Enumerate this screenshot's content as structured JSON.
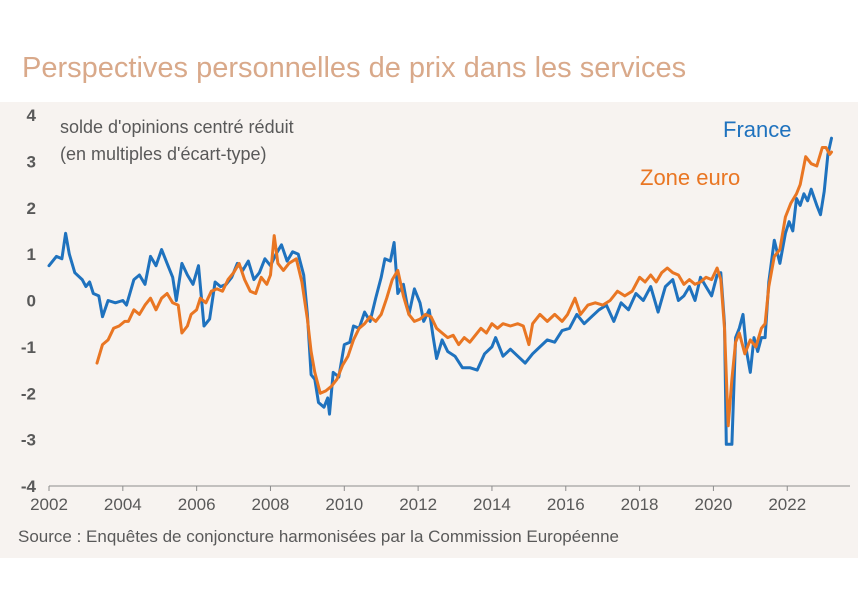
{
  "title": "Perspectives personnelles de prix dans les services",
  "source": "Source : Enquêtes de conjoncture harmonisées par la Commission Européenne",
  "colors": {
    "france": "#1f72be",
    "euro": "#e97623",
    "title": "#d9a98a",
    "axis": "#595959",
    "panel": "#f7f3f0"
  },
  "chart_data": {
    "type": "line",
    "title": "Perspectives personnelles de prix dans les services",
    "ylabel_lines": [
      "solde d'opinions centré réduit",
      "(en multiples d'écart-type)"
    ],
    "xlabel": "",
    "xlim": [
      2002,
      2023.7
    ],
    "ylim": [
      -4,
      4
    ],
    "x_ticks": [
      2002,
      2004,
      2006,
      2008,
      2010,
      2012,
      2014,
      2016,
      2018,
      2020,
      2022
    ],
    "y_ticks": [
      4,
      3,
      2,
      1,
      0,
      -1,
      -2,
      -3,
      -4
    ],
    "series": [
      {
        "name": "France",
        "color": "#1f72be",
        "points": [
          [
            2002.0,
            0.75
          ],
          [
            2002.2,
            0.95
          ],
          [
            2002.35,
            0.9
          ],
          [
            2002.45,
            1.45
          ],
          [
            2002.55,
            1.0
          ],
          [
            2002.7,
            0.6
          ],
          [
            2002.9,
            0.45
          ],
          [
            2003.0,
            0.3
          ],
          [
            2003.1,
            0.4
          ],
          [
            2003.2,
            0.15
          ],
          [
            2003.35,
            0.1
          ],
          [
            2003.45,
            -0.35
          ],
          [
            2003.6,
            0.0
          ],
          [
            2003.8,
            -0.05
          ],
          [
            2004.0,
            0.0
          ],
          [
            2004.1,
            -0.1
          ],
          [
            2004.3,
            0.45
          ],
          [
            2004.45,
            0.55
          ],
          [
            2004.6,
            0.35
          ],
          [
            2004.75,
            0.95
          ],
          [
            2004.9,
            0.75
          ],
          [
            2005.05,
            1.1
          ],
          [
            2005.2,
            0.8
          ],
          [
            2005.35,
            0.5
          ],
          [
            2005.45,
            0.0
          ],
          [
            2005.6,
            0.8
          ],
          [
            2005.75,
            0.55
          ],
          [
            2005.9,
            0.35
          ],
          [
            2006.05,
            0.75
          ],
          [
            2006.2,
            -0.55
          ],
          [
            2006.35,
            -0.4
          ],
          [
            2006.5,
            0.4
          ],
          [
            2006.65,
            0.3
          ],
          [
            2006.8,
            0.35
          ],
          [
            2006.95,
            0.5
          ],
          [
            2007.1,
            0.8
          ],
          [
            2007.25,
            0.65
          ],
          [
            2007.4,
            0.85
          ],
          [
            2007.55,
            0.45
          ],
          [
            2007.7,
            0.6
          ],
          [
            2007.85,
            0.9
          ],
          [
            2008.0,
            0.75
          ],
          [
            2008.15,
            1.0
          ],
          [
            2008.3,
            1.2
          ],
          [
            2008.45,
            0.85
          ],
          [
            2008.6,
            1.05
          ],
          [
            2008.75,
            1.0
          ],
          [
            2008.9,
            0.55
          ],
          [
            2009.0,
            -0.3
          ],
          [
            2009.1,
            -1.6
          ],
          [
            2009.2,
            -1.7
          ],
          [
            2009.3,
            -2.2
          ],
          [
            2009.45,
            -2.3
          ],
          [
            2009.55,
            -2.1
          ],
          [
            2009.6,
            -2.45
          ],
          [
            2009.7,
            -1.55
          ],
          [
            2009.85,
            -1.65
          ],
          [
            2010.0,
            -0.95
          ],
          [
            2010.15,
            -0.9
          ],
          [
            2010.25,
            -0.55
          ],
          [
            2010.4,
            -0.6
          ],
          [
            2010.55,
            -0.25
          ],
          [
            2010.7,
            -0.45
          ],
          [
            2010.85,
            0.05
          ],
          [
            2011.0,
            0.5
          ],
          [
            2011.1,
            0.9
          ],
          [
            2011.25,
            0.85
          ],
          [
            2011.35,
            1.25
          ],
          [
            2011.45,
            0.15
          ],
          [
            2011.6,
            0.35
          ],
          [
            2011.75,
            -0.3
          ],
          [
            2011.9,
            0.25
          ],
          [
            2012.05,
            -0.05
          ],
          [
            2012.15,
            -0.45
          ],
          [
            2012.3,
            -0.2
          ],
          [
            2012.4,
            -0.75
          ],
          [
            2012.5,
            -1.25
          ],
          [
            2012.65,
            -0.85
          ],
          [
            2012.8,
            -1.1
          ],
          [
            2013.0,
            -1.2
          ],
          [
            2013.2,
            -1.45
          ],
          [
            2013.4,
            -1.45
          ],
          [
            2013.6,
            -1.5
          ],
          [
            2013.8,
            -1.15
          ],
          [
            2014.0,
            -1.0
          ],
          [
            2014.1,
            -0.8
          ],
          [
            2014.3,
            -1.2
          ],
          [
            2014.5,
            -1.05
          ],
          [
            2014.7,
            -1.2
          ],
          [
            2014.9,
            -1.35
          ],
          [
            2015.1,
            -1.15
          ],
          [
            2015.3,
            -1.0
          ],
          [
            2015.5,
            -0.85
          ],
          [
            2015.7,
            -0.9
          ],
          [
            2015.9,
            -0.65
          ],
          [
            2016.1,
            -0.6
          ],
          [
            2016.3,
            -0.3
          ],
          [
            2016.5,
            -0.5
          ],
          [
            2016.7,
            -0.35
          ],
          [
            2016.9,
            -0.2
          ],
          [
            2017.1,
            -0.1
          ],
          [
            2017.3,
            -0.45
          ],
          [
            2017.5,
            -0.05
          ],
          [
            2017.7,
            -0.2
          ],
          [
            2017.9,
            0.15
          ],
          [
            2018.1,
            0.0
          ],
          [
            2018.3,
            0.3
          ],
          [
            2018.5,
            -0.25
          ],
          [
            2018.7,
            0.3
          ],
          [
            2018.9,
            0.45
          ],
          [
            2019.05,
            0.0
          ],
          [
            2019.2,
            0.1
          ],
          [
            2019.35,
            0.3
          ],
          [
            2019.5,
            0.0
          ],
          [
            2019.65,
            0.5
          ],
          [
            2019.8,
            0.3
          ],
          [
            2019.95,
            0.1
          ],
          [
            2020.1,
            0.55
          ],
          [
            2020.2,
            0.6
          ],
          [
            2020.3,
            -0.5
          ],
          [
            2020.35,
            -3.1
          ],
          [
            2020.5,
            -3.1
          ],
          [
            2020.6,
            -0.8
          ],
          [
            2020.7,
            -0.6
          ],
          [
            2020.8,
            -0.3
          ],
          [
            2020.9,
            -1.1
          ],
          [
            2021.0,
            -1.55
          ],
          [
            2021.1,
            -0.8
          ],
          [
            2021.2,
            -1.1
          ],
          [
            2021.3,
            -0.8
          ],
          [
            2021.4,
            -0.8
          ],
          [
            2021.5,
            0.4
          ],
          [
            2021.65,
            1.3
          ],
          [
            2021.8,
            0.8
          ],
          [
            2021.95,
            1.45
          ],
          [
            2022.05,
            1.7
          ],
          [
            2022.15,
            1.5
          ],
          [
            2022.25,
            2.2
          ],
          [
            2022.35,
            2.05
          ],
          [
            2022.45,
            2.3
          ],
          [
            2022.55,
            2.15
          ],
          [
            2022.65,
            2.4
          ],
          [
            2022.8,
            2.05
          ],
          [
            2022.9,
            1.85
          ],
          [
            2023.0,
            2.35
          ],
          [
            2023.1,
            3.15
          ],
          [
            2023.2,
            3.5
          ]
        ]
      },
      {
        "name": "Zone euro",
        "color": "#e97623",
        "points": [
          [
            2003.3,
            -1.35
          ],
          [
            2003.45,
            -0.95
          ],
          [
            2003.6,
            -0.85
          ],
          [
            2003.75,
            -0.6
          ],
          [
            2003.9,
            -0.55
          ],
          [
            2004.05,
            -0.45
          ],
          [
            2004.15,
            -0.45
          ],
          [
            2004.3,
            -0.2
          ],
          [
            2004.45,
            -0.3
          ],
          [
            2004.6,
            -0.1
          ],
          [
            2004.75,
            0.05
          ],
          [
            2004.9,
            -0.2
          ],
          [
            2005.05,
            0.05
          ],
          [
            2005.2,
            0.15
          ],
          [
            2005.35,
            -0.05
          ],
          [
            2005.5,
            -0.1
          ],
          [
            2005.6,
            -0.7
          ],
          [
            2005.75,
            -0.55
          ],
          [
            2005.85,
            -0.3
          ],
          [
            2006.0,
            -0.2
          ],
          [
            2006.1,
            0.05
          ],
          [
            2006.25,
            -0.05
          ],
          [
            2006.4,
            0.2
          ],
          [
            2006.55,
            0.25
          ],
          [
            2006.7,
            0.2
          ],
          [
            2006.85,
            0.45
          ],
          [
            2007.0,
            0.6
          ],
          [
            2007.15,
            0.8
          ],
          [
            2007.3,
            0.45
          ],
          [
            2007.45,
            0.2
          ],
          [
            2007.6,
            0.15
          ],
          [
            2007.75,
            0.5
          ],
          [
            2007.9,
            0.35
          ],
          [
            2008.0,
            0.55
          ],
          [
            2008.1,
            1.4
          ],
          [
            2008.2,
            0.8
          ],
          [
            2008.35,
            0.65
          ],
          [
            2008.5,
            0.8
          ],
          [
            2008.7,
            0.9
          ],
          [
            2008.85,
            0.4
          ],
          [
            2009.0,
            -0.4
          ],
          [
            2009.1,
            -1.1
          ],
          [
            2009.2,
            -1.55
          ],
          [
            2009.35,
            -2.0
          ],
          [
            2009.5,
            -1.95
          ],
          [
            2009.65,
            -1.85
          ],
          [
            2009.8,
            -1.7
          ],
          [
            2009.95,
            -1.4
          ],
          [
            2010.1,
            -1.2
          ],
          [
            2010.25,
            -0.85
          ],
          [
            2010.4,
            -0.6
          ],
          [
            2010.55,
            -0.5
          ],
          [
            2010.7,
            -0.35
          ],
          [
            2010.85,
            -0.45
          ],
          [
            2011.0,
            -0.3
          ],
          [
            2011.15,
            0.05
          ],
          [
            2011.3,
            0.45
          ],
          [
            2011.45,
            0.65
          ],
          [
            2011.6,
            0.1
          ],
          [
            2011.75,
            -0.3
          ],
          [
            2011.9,
            -0.45
          ],
          [
            2012.05,
            -0.4
          ],
          [
            2012.2,
            -0.3
          ],
          [
            2012.35,
            -0.35
          ],
          [
            2012.5,
            -0.6
          ],
          [
            2012.65,
            -0.7
          ],
          [
            2012.8,
            -0.8
          ],
          [
            2012.95,
            -0.75
          ],
          [
            2013.1,
            -0.95
          ],
          [
            2013.25,
            -0.8
          ],
          [
            2013.4,
            -0.9
          ],
          [
            2013.55,
            -0.75
          ],
          [
            2013.7,
            -0.6
          ],
          [
            2013.85,
            -0.7
          ],
          [
            2014.0,
            -0.5
          ],
          [
            2014.15,
            -0.6
          ],
          [
            2014.3,
            -0.5
          ],
          [
            2014.5,
            -0.55
          ],
          [
            2014.7,
            -0.5
          ],
          [
            2014.85,
            -0.55
          ],
          [
            2015.0,
            -0.95
          ],
          [
            2015.1,
            -0.5
          ],
          [
            2015.3,
            -0.3
          ],
          [
            2015.5,
            -0.45
          ],
          [
            2015.7,
            -0.3
          ],
          [
            2015.9,
            -0.45
          ],
          [
            2016.05,
            -0.3
          ],
          [
            2016.25,
            0.05
          ],
          [
            2016.4,
            -0.3
          ],
          [
            2016.6,
            -0.1
          ],
          [
            2016.8,
            -0.05
          ],
          [
            2017.0,
            -0.1
          ],
          [
            2017.2,
            0.0
          ],
          [
            2017.4,
            0.2
          ],
          [
            2017.6,
            0.1
          ],
          [
            2017.8,
            0.2
          ],
          [
            2018.0,
            0.5
          ],
          [
            2018.15,
            0.4
          ],
          [
            2018.3,
            0.55
          ],
          [
            2018.45,
            0.4
          ],
          [
            2018.6,
            0.6
          ],
          [
            2018.75,
            0.7
          ],
          [
            2018.9,
            0.6
          ],
          [
            2019.05,
            0.55
          ],
          [
            2019.2,
            0.35
          ],
          [
            2019.35,
            0.45
          ],
          [
            2019.5,
            0.35
          ],
          [
            2019.65,
            0.4
          ],
          [
            2019.8,
            0.5
          ],
          [
            2019.95,
            0.45
          ],
          [
            2020.1,
            0.7
          ],
          [
            2020.2,
            0.45
          ],
          [
            2020.3,
            -0.6
          ],
          [
            2020.4,
            -2.7
          ],
          [
            2020.5,
            -1.7
          ],
          [
            2020.6,
            -0.9
          ],
          [
            2020.7,
            -0.7
          ],
          [
            2020.85,
            -1.15
          ],
          [
            2021.0,
            -0.85
          ],
          [
            2021.15,
            -1.0
          ],
          [
            2021.3,
            -0.6
          ],
          [
            2021.4,
            -0.5
          ],
          [
            2021.5,
            0.3
          ],
          [
            2021.65,
            0.95
          ],
          [
            2021.8,
            1.1
          ],
          [
            2021.95,
            1.8
          ],
          [
            2022.1,
            2.1
          ],
          [
            2022.25,
            2.3
          ],
          [
            2022.35,
            2.5
          ],
          [
            2022.5,
            3.1
          ],
          [
            2022.65,
            2.95
          ],
          [
            2022.8,
            2.9
          ],
          [
            2022.95,
            3.3
          ],
          [
            2023.05,
            3.3
          ],
          [
            2023.15,
            3.15
          ],
          [
            2023.2,
            3.2
          ]
        ]
      }
    ]
  }
}
